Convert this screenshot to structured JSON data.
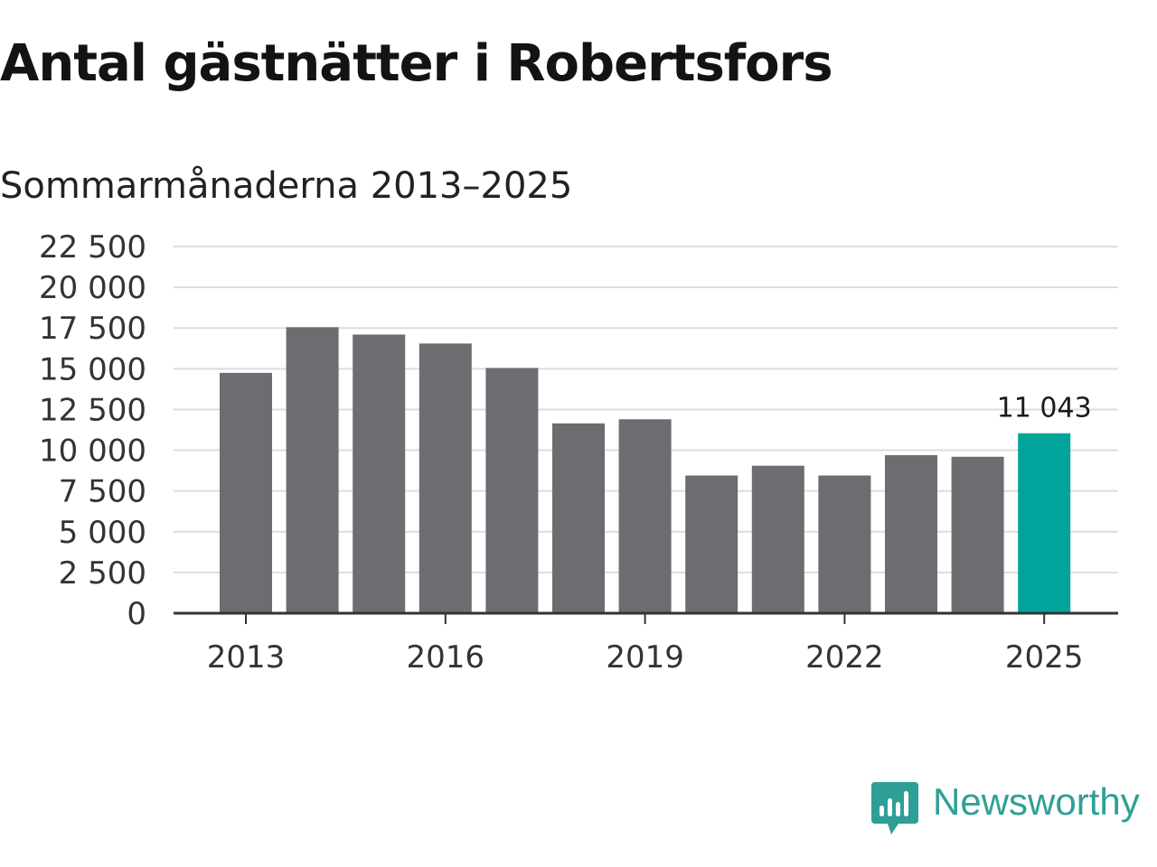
{
  "chart_data": {
    "type": "bar",
    "title": "Antal gästnätter i Robertsfors",
    "subtitle": "Sommarmånaderna 2013–2025",
    "categories": [
      "2013",
      "2014",
      "2015",
      "2016",
      "2017",
      "2018",
      "2019",
      "2020",
      "2021",
      "2022",
      "2023",
      "2024",
      "2025"
    ],
    "values": [
      14750,
      17550,
      17100,
      16550,
      15050,
      11650,
      11900,
      8450,
      9050,
      8450,
      9700,
      9600,
      11043
    ],
    "x_tick_labels": [
      "2013",
      "2016",
      "2019",
      "2022",
      "2025"
    ],
    "y_ticks": [
      0,
      2500,
      5000,
      7500,
      10000,
      12500,
      15000,
      17500,
      20000,
      22500
    ],
    "y_tick_labels": [
      "0",
      "2 500",
      "5 000",
      "7 500",
      "10 000",
      "12 500",
      "15 000",
      "17 500",
      "20 000",
      "22 500"
    ],
    "ylim": [
      0,
      22500
    ],
    "xlabel": "",
    "ylabel": "",
    "grid": true,
    "data_labels": [
      {
        "category": "2025",
        "text": "11 043"
      }
    ],
    "colors": {
      "bar": "#6d6c71",
      "highlight": "#00a49a",
      "grid": "#dddddd",
      "axis": "#333333"
    }
  },
  "branding": {
    "logo_text": "Newsworthy",
    "logo_color": "#2e9f96",
    "logo_icon": "newsworthy-bar-chart-icon"
  }
}
